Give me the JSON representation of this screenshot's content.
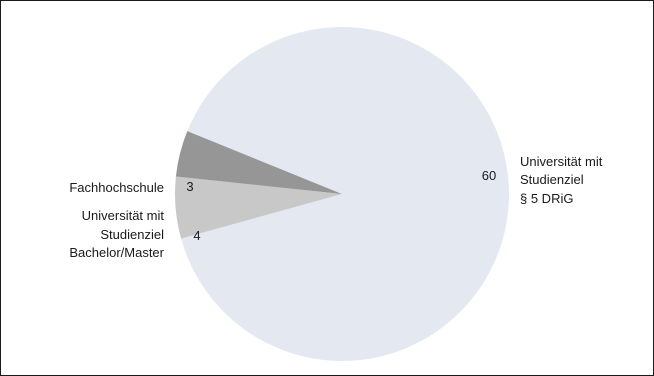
{
  "chart_data": {
    "type": "pie",
    "slices": [
      {
        "value": 60,
        "value_label": "60",
        "label_lines": [
          "Universität mit",
          "Studienziel",
          "§ 5 DRiG"
        ],
        "color": "#e4e9f1"
      },
      {
        "value": 4,
        "value_label": "4",
        "label_lines": [
          "Universität mit",
          "Studienziel",
          "Bachelor/Master"
        ],
        "color": "#c8c8c8"
      },
      {
        "value": 3,
        "value_label": "3",
        "label_lines": [
          "Fachhochschule"
        ],
        "color": "#969696"
      }
    ],
    "outline_color": "#1a1a1a"
  }
}
